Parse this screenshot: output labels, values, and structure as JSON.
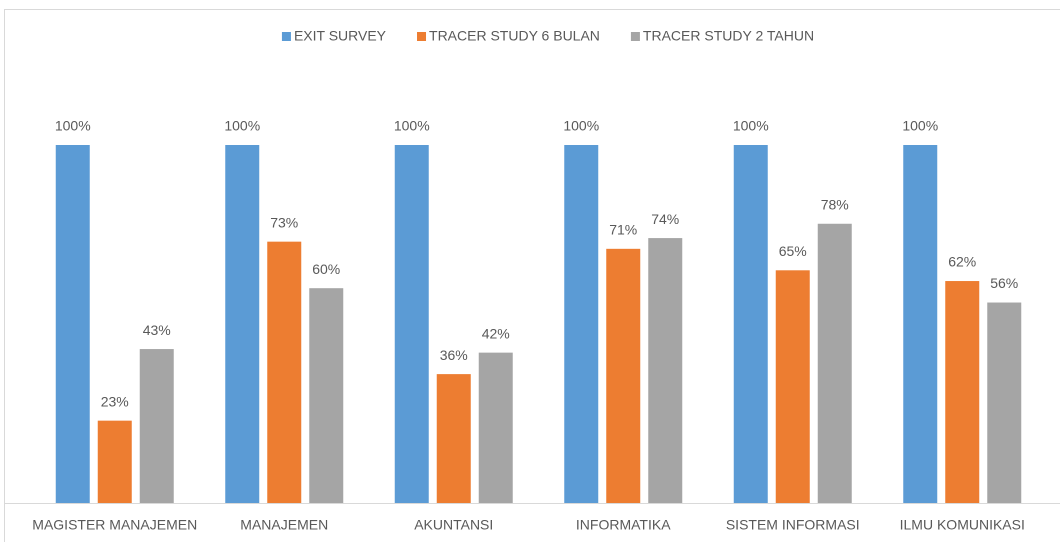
{
  "chart_data": {
    "type": "bar",
    "categories": [
      "MAGISTER MANAJEMEN",
      "MANAJEMEN",
      "AKUNTANSI",
      "INFORMATIKA",
      "SISTEM INFORMASI",
      "ILMU KOMUNIKASI"
    ],
    "series": [
      {
        "name": "EXIT SURVEY",
        "color": "#5b9bd5",
        "values": [
          100,
          100,
          100,
          100,
          100,
          100
        ],
        "value_labels": [
          "100%",
          "100%",
          "100%",
          "100%",
          "100%",
          "100%"
        ]
      },
      {
        "name": "TRACER STUDY 6 BULAN",
        "color": "#ed7d31",
        "values": [
          23,
          73,
          36,
          71,
          65,
          62
        ],
        "value_labels": [
          "23%",
          "73%",
          "36%",
          "71%",
          "65%",
          "62%"
        ]
      },
      {
        "name": "TRACER STUDY 2 TAHUN",
        "color": "#a5a5a5",
        "values": [
          43,
          60,
          42,
          74,
          78,
          56
        ],
        "value_labels": [
          "43%",
          "60%",
          "42%",
          "74%",
          "78%",
          "56%"
        ]
      }
    ],
    "ylim": [
      0,
      100
    ],
    "legend": "top"
  }
}
